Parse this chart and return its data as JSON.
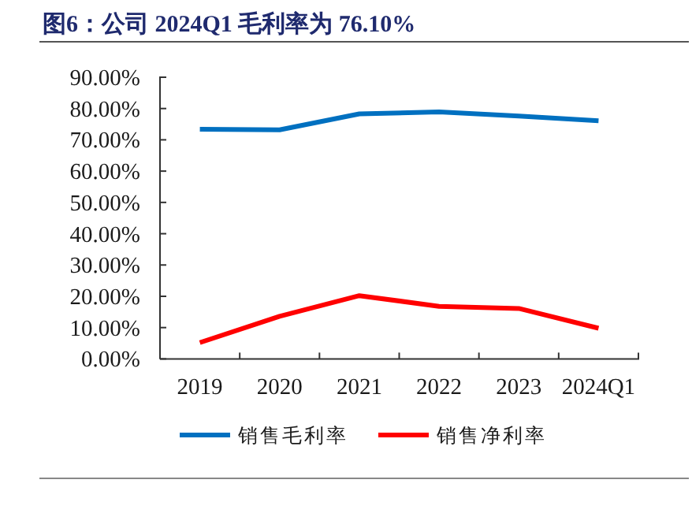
{
  "chart_data": {
    "type": "line",
    "title": "图6：公司 2024Q1 毛利率为 76.10%",
    "categories": [
      "2019",
      "2020",
      "2021",
      "2022",
      "2023",
      "2024Q1"
    ],
    "series": [
      {
        "name": "销售毛利率",
        "color": "#0070c0",
        "values": [
          73.4,
          73.2,
          78.3,
          78.9,
          77.6,
          76.1
        ]
      },
      {
        "name": "销售净利率",
        "color": "#ff0000",
        "values": [
          5.2,
          13.6,
          20.2,
          16.8,
          16.1,
          9.8
        ]
      }
    ],
    "ylim": [
      0,
      90
    ],
    "yticks": [
      {
        "value": 0,
        "label": "0.00%"
      },
      {
        "value": 10,
        "label": "10.00%"
      },
      {
        "value": 20,
        "label": "20.00%"
      },
      {
        "value": 30,
        "label": "30.00%"
      },
      {
        "value": 40,
        "label": "40.00%"
      },
      {
        "value": 50,
        "label": "50.00%"
      },
      {
        "value": 60,
        "label": "60.00%"
      },
      {
        "value": 70,
        "label": "70.00%"
      },
      {
        "value": 80,
        "label": "80.00%"
      },
      {
        "value": 90,
        "label": "90.00%"
      }
    ],
    "grid": false,
    "legend": "bottom"
  }
}
